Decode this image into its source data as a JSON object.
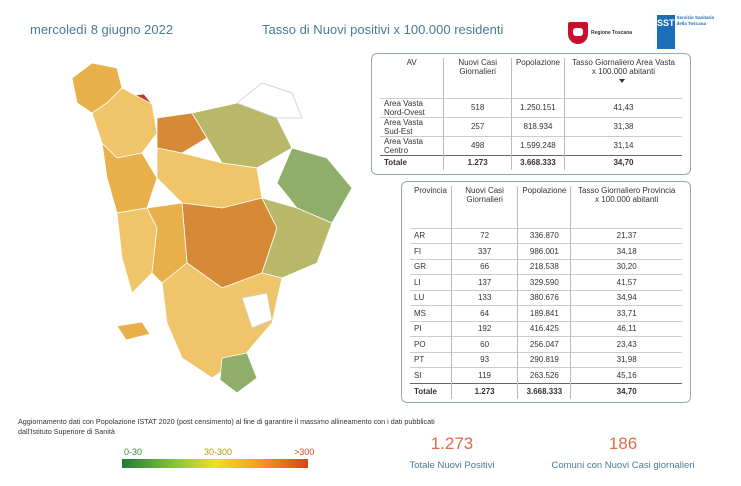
{
  "header": {
    "date": "mercoledì 8 giugno 2022",
    "title": "Tasso di Nuovi positivi x 100.000 residenti",
    "logo_regione": "Regione Toscana",
    "logo_sst_mark": "SST",
    "logo_sst_text": "Servizio Sanitario della Toscana"
  },
  "area_table": {
    "headers": [
      "AV",
      "Nuovi Casi Giornalieri",
      "Popolazione",
      "Tasso Giornaliero Area Vasta x 100.000 abitanti"
    ],
    "rows": [
      [
        "Area Vasta Nord-Ovest",
        "518",
        "1.250.151",
        "41,43"
      ],
      [
        "Area Vasta Sud-Est",
        "257",
        "818.934",
        "31,38"
      ],
      [
        "Area Vasta Centro",
        "498",
        "1.599.248",
        "31,14"
      ]
    ],
    "total": [
      "Totale",
      "1.273",
      "3.668.333",
      "34,70"
    ]
  },
  "province_table": {
    "headers": [
      "Provincia",
      "Nuovi Casi Giornalieri",
      "Popolazione",
      "Tasso Giornaliero Provincia x 100.000 abitanti"
    ],
    "rows": [
      [
        "AR",
        "72",
        "336.870",
        "21,37"
      ],
      [
        "FI",
        "337",
        "986.001",
        "34,18"
      ],
      [
        "GR",
        "66",
        "218.538",
        "30,20"
      ],
      [
        "LI",
        "137",
        "329.590",
        "41,57"
      ],
      [
        "LU",
        "133",
        "380.676",
        "34,94"
      ],
      [
        "MS",
        "64",
        "189.841",
        "33,71"
      ],
      [
        "PI",
        "192",
        "416.425",
        "46,11"
      ],
      [
        "PO",
        "60",
        "256.047",
        "23,43"
      ],
      [
        "PT",
        "93",
        "290.819",
        "31,98"
      ],
      [
        "SI",
        "119",
        "263.526",
        "45,16"
      ]
    ],
    "total": [
      "Totale",
      "1.273",
      "3.668.333",
      "34,70"
    ]
  },
  "note": "Aggiornamento dati con Popolazione ISTAT 2020 (post censimento) al fine di garantire il massimo allineamento con i dati pubblicati dall'Istituto Superiore di Sanità",
  "legend": {
    "low": "0-30",
    "mid": "30-300",
    "high": ">300",
    "colors": [
      "#1e7d32",
      "#8dc63f",
      "#f0e020",
      "#f39a1e",
      "#e0401b"
    ]
  },
  "kpis": {
    "total_positives_value": "1.273",
    "total_positives_label": "Totale Nuovi Positivi",
    "municipalities_value": "186",
    "municipalities_label": "Comuni con Nuovi Casi giornalieri"
  },
  "map": {
    "region": "Toscana",
    "fill_colors": [
      "#e8b04a",
      "#f0c468",
      "#d68a36",
      "#b9b868",
      "#8fae6a",
      "#c0392b",
      "#ffffff"
    ]
  }
}
